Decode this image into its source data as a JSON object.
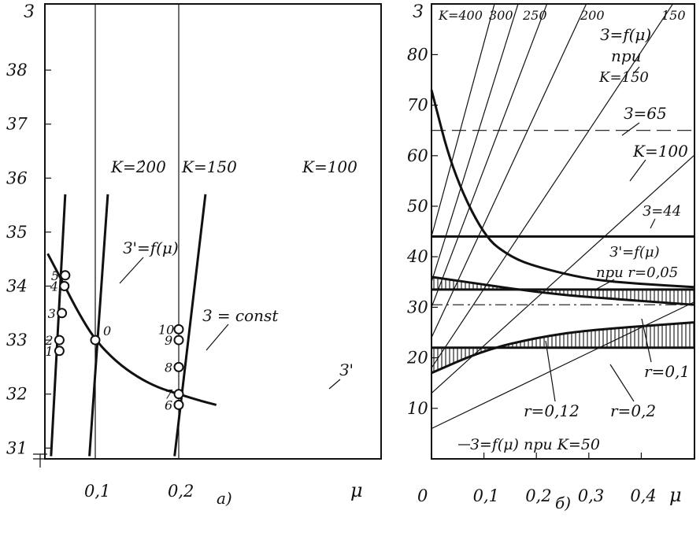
{
  "chart_data": [
    {
      "panel_label": "а)",
      "type": "line",
      "y_axis_label": "З",
      "x_axis_label": "μ",
      "ylim": [
        31,
        39
      ],
      "xlim": [
        0.04,
        0.24
      ],
      "yticks": [
        31,
        32,
        33,
        34,
        35,
        36,
        37,
        38
      ],
      "ytick_labels": [
        "31",
        "32",
        "33",
        "34",
        "35",
        "36",
        "37",
        "38"
      ],
      "xticks": [
        0.1,
        0.2
      ],
      "xtick_labels": [
        "0,1",
        "0,2"
      ],
      "grid_x": [
        0.1,
        0.2
      ],
      "series": [
        {
          "name": "K=200",
          "points": [
            [
              0.047,
              30.85
            ],
            [
              0.064,
              35.7
            ]
          ]
        },
        {
          "name": "K=150",
          "points": [
            [
              0.093,
              30.85
            ],
            [
              0.115,
              35.7
            ]
          ]
        },
        {
          "name": "K=100",
          "points": [
            [
              0.195,
              30.85
            ],
            [
              0.232,
              35.7
            ]
          ]
        },
        {
          "name": "З'=f(μ)",
          "points": [
            [
              0.043,
              34.6
            ],
            [
              0.06,
              34.1
            ],
            [
              0.08,
              33.5
            ],
            [
              0.1,
              33.0
            ],
            [
              0.125,
              32.6
            ],
            [
              0.15,
              32.32
            ],
            [
              0.175,
              32.12
            ],
            [
              0.2,
              32.0
            ],
            [
              0.225,
              31.88
            ],
            [
              0.245,
              31.8
            ]
          ]
        }
      ],
      "markers": [
        {
          "label": "1",
          "x": 0.057,
          "y": 32.8
        },
        {
          "label": "2",
          "x": 0.057,
          "y": 33.0
        },
        {
          "label": "3",
          "x": 0.06,
          "y": 33.5
        },
        {
          "label": "4",
          "x": 0.063,
          "y": 34.0
        },
        {
          "label": "5",
          "x": 0.064,
          "y": 34.2
        },
        {
          "label": "0",
          "x": 0.1,
          "y": 33.0
        },
        {
          "label": "6",
          "x": 0.2,
          "y": 31.8
        },
        {
          "label": "7",
          "x": 0.2,
          "y": 32.0
        },
        {
          "label": "8",
          "x": 0.2,
          "y": 32.5
        },
        {
          "label": "9",
          "x": 0.2,
          "y": 33.0
        },
        {
          "label": "10",
          "x": 0.2,
          "y": 33.2
        }
      ],
      "annotations": {
        "k200": "K=2̂00",
        "k150": "K=150",
        "k100": "K=100",
        "curve_label": "З'=f(μ)",
        "const_label": "З = const",
        "z_prime": "З'"
      }
    },
    {
      "panel_label": "б)",
      "type": "line",
      "y_axis_label": "З",
      "x_axis_label": "μ",
      "ylim": [
        0,
        90
      ],
      "xlim": [
        0,
        0.5
      ],
      "yticks": [
        10,
        20,
        30,
        40,
        50,
        60,
        70,
        80
      ],
      "ytick_labels": [
        "10",
        "20",
        "30",
        "40",
        "50",
        "60",
        "70",
        "80"
      ],
      "xticks": [
        0,
        0.1,
        0.2,
        0.3,
        0.4
      ],
      "xtick_labels": [
        "0",
        "0,1",
        "0,2",
        "0,3",
        "0,4"
      ],
      "series": [
        {
          "name": "K=400",
          "points": [
            [
              0.0,
              44
            ],
            [
              0.12,
              90
            ]
          ]
        },
        {
          "name": "300",
          "points": [
            [
              0.0,
              35
            ],
            [
              0.165,
              90
            ]
          ]
        },
        {
          "name": "250",
          "points": [
            [
              0.0,
              30
            ],
            [
              0.22,
              90
            ]
          ]
        },
        {
          "name": "200",
          "points": [
            [
              0.0,
              24
            ],
            [
              0.295,
              90
            ]
          ]
        },
        {
          "name": "150",
          "points": [
            [
              0.0,
              18
            ],
            [
              0.46,
              90
            ]
          ]
        },
        {
          "name": "K=100",
          "points": [
            [
              0.0,
              13
            ],
            [
              0.5,
              60
            ]
          ]
        },
        {
          "name": "З=f(μ) при K=50",
          "points": [
            [
              0.0,
              6
            ],
            [
              0.5,
              31
            ]
          ]
        },
        {
          "name": "З=f(μ) при K=150",
          "points": [
            [
              0.0,
              73
            ],
            [
              0.04,
              57
            ],
            [
              0.1,
              44
            ],
            [
              0.15,
              40
            ],
            [
              0.2,
              38
            ],
            [
              0.3,
              35.5
            ],
            [
              0.4,
              34.6
            ],
            [
              0.5,
              34
            ]
          ]
        },
        {
          "name": "r=0,12",
          "points": [
            [
              0.0,
              36
            ],
            [
              0.1,
              34.5
            ],
            [
              0.2,
              33
            ],
            [
              0.3,
              32
            ],
            [
              0.5,
              30.5
            ]
          ]
        },
        {
          "name": "r=0,2",
          "points": [
            [
              0.0,
              17
            ],
            [
              0.1,
              21.5
            ],
            [
              0.2,
              24
            ],
            [
              0.3,
              25.5
            ],
            [
              0.5,
              27
            ]
          ]
        },
        {
          "name": "З=44",
          "points": [
            [
              0.0,
              44
            ],
            [
              0.5,
              44
            ]
          ]
        },
        {
          "name": "З=65",
          "points": [
            [
              0.0,
              65
            ],
            [
              0.5,
              65
            ]
          ]
        },
        {
          "name": "r=0,05",
          "points": [
            [
              0.0,
              33.5
            ],
            [
              0.5,
              33.5
            ]
          ]
        },
        {
          "name": "З'=f(μ)",
          "points": [
            [
              0.0,
              30.5
            ],
            [
              0.5,
              30.5
            ]
          ]
        },
        {
          "name": "r=0,1",
          "points": [
            [
              0.0,
              22
            ],
            [
              0.5,
              22
            ]
          ]
        }
      ],
      "annotations": {
        "k400": "K=400",
        "k300": "300",
        "k250": "250",
        "k200": "200",
        "k150": "150",
        "f_label": "З=f(μ)",
        "pri": "при",
        "k150b": "K=150",
        "z65": "З=65",
        "k100": "K=100",
        "z44": "З=44",
        "fprime": "З'=f(μ)",
        "pri_r": "при r=0,05",
        "r01": "r=0,1",
        "r012": "r=0,12",
        "r02": "r=0,2",
        "k50": "З=f(μ) при K=50"
      }
    }
  ]
}
